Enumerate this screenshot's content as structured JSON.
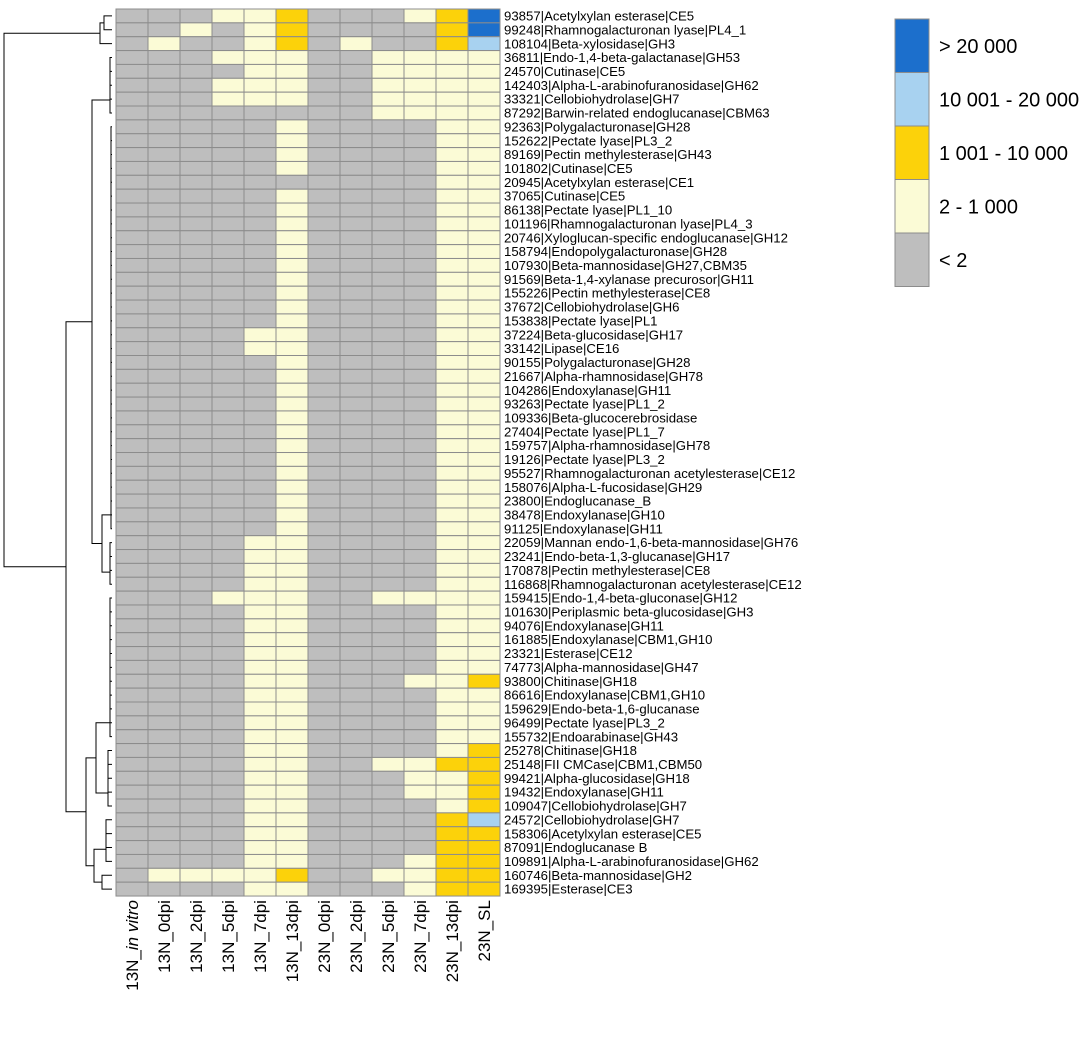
{
  "chart_data": {
    "type": "heatmap",
    "title": "",
    "columns": [
      "13N_in vitro",
      "13N_0dpi",
      "13N_2dpi",
      "13N_5dpi",
      "13N_7dpi",
      "13N_13dpi",
      "23N_0dpi",
      "23N_2dpi",
      "23N_5dpi",
      "23N_7dpi",
      "23N_13dpi",
      "23N_SL"
    ],
    "column_label_parts": [
      [
        {
          "t": "13N_",
          "i": false
        },
        {
          "t": "in vitro",
          "i": true
        }
      ],
      [
        {
          "t": "13N_0dpi",
          "i": false
        }
      ],
      [
        {
          "t": "13N_2dpi",
          "i": false
        }
      ],
      [
        {
          "t": "13N_5dpi",
          "i": false
        }
      ],
      [
        {
          "t": "13N_7dpi",
          "i": false
        }
      ],
      [
        {
          "t": "13N_13dpi",
          "i": false
        }
      ],
      [
        {
          "t": "23N_0dpi",
          "i": false
        }
      ],
      [
        {
          "t": "23N_2dpi",
          "i": false
        }
      ],
      [
        {
          "t": "23N_5dpi",
          "i": false
        }
      ],
      [
        {
          "t": "23N_7dpi",
          "i": false
        }
      ],
      [
        {
          "t": "23N_13dpi",
          "i": false
        }
      ],
      [
        {
          "t": "23N_SL",
          "i": false
        }
      ]
    ],
    "legend": [
      {
        "label": "> 20 000",
        "level": 4,
        "color": "#1c6fcc"
      },
      {
        "label": "10 001 - 20 000",
        "level": 3,
        "color": "#a8d2f0"
      },
      {
        "label": "1 001 - 10 000",
        "level": 2,
        "color": "#fcd20a"
      },
      {
        "label": "2 - 1 000",
        "level": 1,
        "color": "#fbfbd6"
      },
      {
        "label": "< 2",
        "level": 0,
        "color": "#bebebe"
      }
    ],
    "rows": [
      {
        "label": "93857|Acetylxylan esterase|CE5",
        "values": [
          0,
          0,
          0,
          1,
          1,
          2,
          0,
          0,
          0,
          1,
          2,
          4
        ]
      },
      {
        "label": "99248|Rhamnogalacturonan lyase|PL4_1",
        "values": [
          0,
          0,
          1,
          0,
          1,
          2,
          0,
          0,
          0,
          0,
          2,
          4
        ]
      },
      {
        "label": "108104|Beta-xylosidase|GH3",
        "values": [
          0,
          1,
          0,
          0,
          1,
          2,
          0,
          1,
          0,
          0,
          2,
          3
        ]
      },
      {
        "label": "36811|Endo-1,4-beta-galactanase|GH53",
        "values": [
          0,
          0,
          0,
          1,
          1,
          1,
          0,
          0,
          1,
          1,
          1,
          1
        ]
      },
      {
        "label": "24570|Cutinase|CE5",
        "values": [
          0,
          0,
          0,
          0,
          1,
          1,
          0,
          0,
          1,
          1,
          1,
          1
        ]
      },
      {
        "label": "142403|Alpha-L-arabinofuranosidase|GH62",
        "values": [
          0,
          0,
          0,
          1,
          1,
          1,
          0,
          0,
          1,
          1,
          1,
          1
        ]
      },
      {
        "label": "33321|Cellobiohydrolase|GH7",
        "values": [
          0,
          0,
          0,
          1,
          1,
          1,
          0,
          0,
          1,
          1,
          1,
          1
        ]
      },
      {
        "label": "87292|Barwin-related endoglucanase|CBM63",
        "values": [
          0,
          0,
          0,
          0,
          0,
          0,
          0,
          0,
          1,
          1,
          1,
          1
        ]
      },
      {
        "label": "92363|Polygalacturonase|GH28",
        "values": [
          0,
          0,
          0,
          0,
          0,
          1,
          0,
          0,
          0,
          0,
          1,
          1
        ]
      },
      {
        "label": "152622|Pectate lyase|PL3_2",
        "values": [
          0,
          0,
          0,
          0,
          0,
          1,
          0,
          0,
          0,
          0,
          1,
          1
        ]
      },
      {
        "label": "89169|Pectin methylesterase|GH43",
        "values": [
          0,
          0,
          0,
          0,
          0,
          1,
          0,
          0,
          0,
          0,
          1,
          1
        ]
      },
      {
        "label": "101802|Cutinase|CE5",
        "values": [
          0,
          0,
          0,
          0,
          0,
          1,
          0,
          0,
          0,
          0,
          1,
          1
        ]
      },
      {
        "label": "20945|Acetylxylan esterase|CE1",
        "values": [
          0,
          0,
          0,
          0,
          0,
          0,
          0,
          0,
          0,
          0,
          1,
          1
        ]
      },
      {
        "label": "37065|Cutinase|CE5",
        "values": [
          0,
          0,
          0,
          0,
          0,
          1,
          0,
          0,
          0,
          0,
          1,
          1
        ]
      },
      {
        "label": "86138|Pectate lyase|PL1_10",
        "values": [
          0,
          0,
          0,
          0,
          0,
          1,
          0,
          0,
          0,
          0,
          1,
          1
        ]
      },
      {
        "label": "101196|Rhamnogalacturonan lyase|PL4_3",
        "values": [
          0,
          0,
          0,
          0,
          0,
          1,
          0,
          0,
          0,
          0,
          1,
          1
        ]
      },
      {
        "label": "20746|Xyloglucan-specific endoglucanase|GH12",
        "values": [
          0,
          0,
          0,
          0,
          0,
          1,
          0,
          0,
          0,
          0,
          1,
          1
        ]
      },
      {
        "label": "158794|Endopolygalacturonase|GH28",
        "values": [
          0,
          0,
          0,
          0,
          0,
          1,
          0,
          0,
          0,
          0,
          1,
          1
        ]
      },
      {
        "label": "107930|Beta-mannosidase|GH27,CBM35",
        "values": [
          0,
          0,
          0,
          0,
          0,
          1,
          0,
          0,
          0,
          0,
          1,
          1
        ]
      },
      {
        "label": "91569|Beta-1,4-xylanase precurosor|GH11",
        "values": [
          0,
          0,
          0,
          0,
          0,
          1,
          0,
          0,
          0,
          0,
          1,
          1
        ]
      },
      {
        "label": "155226|Pectin methylesterase|CE8",
        "values": [
          0,
          0,
          0,
          0,
          0,
          1,
          0,
          0,
          0,
          0,
          1,
          1
        ]
      },
      {
        "label": "37672|Cellobiohydrolase|GH6",
        "values": [
          0,
          0,
          0,
          0,
          0,
          1,
          0,
          0,
          0,
          0,
          1,
          1
        ]
      },
      {
        "label": "153838|Pectate lyase|PL1",
        "values": [
          0,
          0,
          0,
          0,
          0,
          1,
          0,
          0,
          0,
          0,
          1,
          1
        ]
      },
      {
        "label": "37224|Beta-glucosidase|GH17",
        "values": [
          0,
          0,
          0,
          0,
          1,
          1,
          0,
          0,
          0,
          0,
          1,
          1
        ]
      },
      {
        "label": "33142|Lipase|CE16",
        "values": [
          0,
          0,
          0,
          0,
          1,
          1,
          0,
          0,
          0,
          0,
          1,
          1
        ]
      },
      {
        "label": "90155|Polygalacturonase|GH28",
        "values": [
          0,
          0,
          0,
          0,
          0,
          1,
          0,
          0,
          0,
          0,
          1,
          1
        ]
      },
      {
        "label": "21667|Alpha-rhamnosidase|GH78",
        "values": [
          0,
          0,
          0,
          0,
          0,
          1,
          0,
          0,
          0,
          0,
          1,
          1
        ]
      },
      {
        "label": "104286|Endoxylanase|GH11",
        "values": [
          0,
          0,
          0,
          0,
          0,
          1,
          0,
          0,
          0,
          0,
          1,
          1
        ]
      },
      {
        "label": "93263|Pectate lyase|PL1_2",
        "values": [
          0,
          0,
          0,
          0,
          0,
          1,
          0,
          0,
          0,
          0,
          1,
          1
        ]
      },
      {
        "label": "109336|Beta-glucocerebrosidase",
        "values": [
          0,
          0,
          0,
          0,
          0,
          1,
          0,
          0,
          0,
          0,
          1,
          1
        ]
      },
      {
        "label": "27404|Pectate lyase|PL1_7",
        "values": [
          0,
          0,
          0,
          0,
          0,
          1,
          0,
          0,
          0,
          0,
          1,
          1
        ]
      },
      {
        "label": "159757|Alpha-rhamnosidase|GH78",
        "values": [
          0,
          0,
          0,
          0,
          0,
          1,
          0,
          0,
          0,
          0,
          1,
          1
        ]
      },
      {
        "label": "19126|Pectate lyase|PL3_2",
        "values": [
          0,
          0,
          0,
          0,
          0,
          1,
          0,
          0,
          0,
          0,
          1,
          1
        ]
      },
      {
        "label": "95527|Rhamnogalacturonan acetylesterase|CE12",
        "values": [
          0,
          0,
          0,
          0,
          0,
          1,
          0,
          0,
          0,
          0,
          1,
          1
        ]
      },
      {
        "label": "158076|Alpha-L-fucosidase|GH29",
        "values": [
          0,
          0,
          0,
          0,
          0,
          1,
          0,
          0,
          0,
          0,
          1,
          1
        ]
      },
      {
        "label": "23800|Endoglucanase_B",
        "values": [
          0,
          0,
          0,
          0,
          0,
          1,
          0,
          0,
          0,
          0,
          1,
          1
        ]
      },
      {
        "label": "38478|Endoxylanase|GH10",
        "values": [
          0,
          0,
          0,
          0,
          0,
          1,
          0,
          0,
          0,
          0,
          1,
          1
        ]
      },
      {
        "label": "91125|Endoxylanase|GH11",
        "values": [
          0,
          0,
          0,
          0,
          0,
          1,
          0,
          0,
          0,
          0,
          1,
          1
        ]
      },
      {
        "label": "22059|Mannan endo-1,6-beta-mannosidase|GH76",
        "values": [
          0,
          0,
          0,
          0,
          1,
          1,
          0,
          0,
          0,
          0,
          1,
          1
        ]
      },
      {
        "label": "23241|Endo-beta-1,3-glucanase|GH17",
        "values": [
          0,
          0,
          0,
          0,
          1,
          1,
          0,
          0,
          0,
          0,
          1,
          1
        ]
      },
      {
        "label": "170878|Pectin methylesterase|CE8",
        "values": [
          0,
          0,
          0,
          0,
          1,
          1,
          0,
          0,
          0,
          0,
          1,
          1
        ]
      },
      {
        "label": "116868|Rhamnogalacturonan acetylesterase|CE12",
        "values": [
          0,
          0,
          0,
          0,
          1,
          1,
          0,
          0,
          0,
          0,
          1,
          1
        ]
      },
      {
        "label": "159415|Endo-1,4-beta-gluconase|GH12",
        "values": [
          0,
          0,
          0,
          1,
          1,
          1,
          0,
          0,
          1,
          1,
          1,
          1
        ]
      },
      {
        "label": "101630|Periplasmic beta-glucosidase|GH3",
        "values": [
          0,
          0,
          0,
          0,
          1,
          1,
          0,
          0,
          0,
          0,
          1,
          1
        ]
      },
      {
        "label": "94076|Endoxylanase|GH11",
        "values": [
          0,
          0,
          0,
          0,
          1,
          1,
          0,
          0,
          0,
          0,
          1,
          1
        ]
      },
      {
        "label": "161885|Endoxylanase|CBM1,GH10",
        "values": [
          0,
          0,
          0,
          0,
          1,
          1,
          0,
          0,
          0,
          0,
          1,
          1
        ]
      },
      {
        "label": "23321|Esterase|CE12",
        "values": [
          0,
          0,
          0,
          0,
          1,
          1,
          0,
          0,
          0,
          0,
          1,
          1
        ]
      },
      {
        "label": "74773|Alpha-mannosidase|GH47",
        "values": [
          0,
          0,
          0,
          0,
          1,
          1,
          0,
          0,
          0,
          0,
          1,
          1
        ]
      },
      {
        "label": "93800|Chitinase|GH18",
        "values": [
          0,
          0,
          0,
          0,
          1,
          1,
          0,
          0,
          0,
          1,
          1,
          2
        ]
      },
      {
        "label": "86616|Endoxylanase|CBM1,GH10",
        "values": [
          0,
          0,
          0,
          0,
          1,
          1,
          0,
          0,
          0,
          0,
          1,
          1
        ]
      },
      {
        "label": "159629|Endo-beta-1,6-glucanase",
        "values": [
          0,
          0,
          0,
          0,
          1,
          1,
          0,
          0,
          0,
          0,
          1,
          1
        ]
      },
      {
        "label": "96499|Pectate lyase|PL3_2",
        "values": [
          0,
          0,
          0,
          0,
          1,
          1,
          0,
          0,
          0,
          0,
          1,
          1
        ]
      },
      {
        "label": "155732|Endoarabinase|GH43",
        "values": [
          0,
          0,
          0,
          0,
          1,
          1,
          0,
          0,
          0,
          0,
          1,
          1
        ]
      },
      {
        "label": "25278|Chitinase|GH18",
        "values": [
          0,
          0,
          0,
          0,
          1,
          1,
          0,
          0,
          0,
          0,
          1,
          2
        ]
      },
      {
        "label": "25148|FII CMCase|CBM1,CBM50",
        "values": [
          0,
          0,
          0,
          0,
          1,
          1,
          0,
          0,
          1,
          1,
          2,
          2
        ]
      },
      {
        "label": "99421|Alpha-glucosidase|GH18",
        "values": [
          0,
          0,
          0,
          0,
          1,
          1,
          0,
          0,
          0,
          1,
          1,
          2
        ]
      },
      {
        "label": "19432|Endoxylanase|GH11",
        "values": [
          0,
          0,
          0,
          0,
          1,
          1,
          0,
          0,
          0,
          1,
          1,
          2
        ]
      },
      {
        "label": "109047|Cellobiohydrolase|GH7",
        "values": [
          0,
          0,
          0,
          0,
          1,
          1,
          0,
          0,
          0,
          0,
          1,
          2
        ]
      },
      {
        "label": "24572|Cellobiohydrolase|GH7",
        "values": [
          0,
          0,
          0,
          0,
          1,
          1,
          0,
          0,
          0,
          0,
          2,
          3
        ]
      },
      {
        "label": "158306|Acetylxylan esterase|CE5",
        "values": [
          0,
          0,
          0,
          0,
          1,
          1,
          0,
          0,
          0,
          0,
          2,
          2
        ]
      },
      {
        "label": "87091|Endoglucanase B",
        "values": [
          0,
          0,
          0,
          0,
          1,
          1,
          0,
          0,
          0,
          0,
          2,
          2
        ]
      },
      {
        "label": "109891|Alpha-L-arabinofuranosidase|GH62",
        "values": [
          0,
          0,
          0,
          0,
          1,
          1,
          0,
          0,
          0,
          1,
          2,
          2
        ]
      },
      {
        "label": "160746|Beta-mannosidase|GH2",
        "values": [
          0,
          1,
          1,
          1,
          1,
          2,
          0,
          0,
          1,
          1,
          2,
          2
        ]
      },
      {
        "label": "169395|Esterase|CE3",
        "values": [
          0,
          0,
          0,
          0,
          1,
          1,
          0,
          0,
          0,
          1,
          2,
          2
        ]
      }
    ]
  }
}
